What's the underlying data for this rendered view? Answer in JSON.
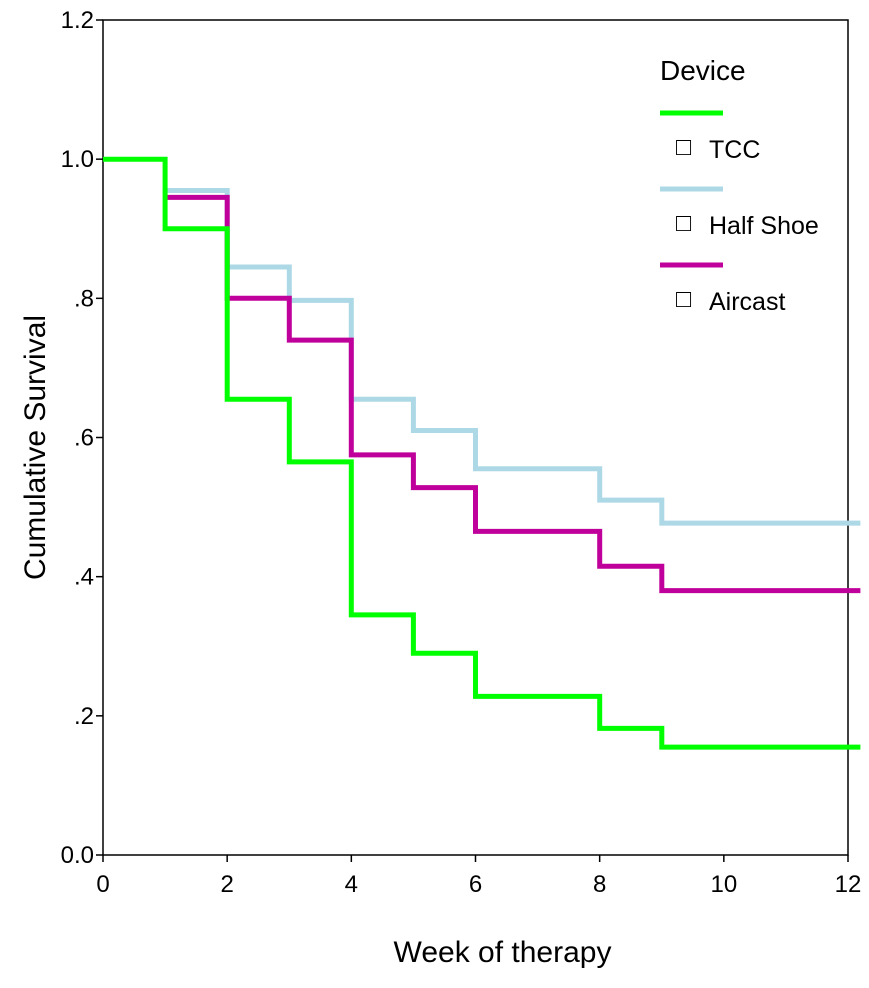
{
  "chart_data": {
    "type": "line",
    "step": true,
    "xlabel": "Week of therapy",
    "ylabel": "Cumulative Survival",
    "xlim": [
      0,
      12
    ],
    "ylim": [
      0,
      1.2
    ],
    "xticks": [
      0,
      2,
      4,
      6,
      8,
      10,
      12
    ],
    "xtick_labels": [
      "0",
      "2",
      "4",
      "6",
      "8",
      "10",
      "12"
    ],
    "yticks": [
      0,
      0.2,
      0.4,
      0.6,
      0.8,
      1.0,
      1.2
    ],
    "ytick_labels": [
      "0.0",
      ".2",
      ".4",
      ".6",
      ".8",
      "1.0",
      "1.2"
    ],
    "grid": false,
    "legend": {
      "title": "Device",
      "placement": "top-right",
      "censor_marker": "□"
    },
    "series": [
      {
        "name": "TCC",
        "color": "#00ff00",
        "x": [
          0,
          1,
          2,
          3,
          4,
          5,
          6,
          8,
          9,
          12.2
        ],
        "y": [
          1.0,
          0.9,
          0.655,
          0.565,
          0.345,
          0.29,
          0.228,
          0.182,
          0.155,
          0.155
        ]
      },
      {
        "name": "Half Shoe",
        "color": "#add8e6",
        "x": [
          1,
          2,
          3,
          4,
          5,
          6,
          8,
          9,
          12.2
        ],
        "y": [
          0.955,
          0.845,
          0.797,
          0.655,
          0.61,
          0.555,
          0.51,
          0.477,
          0.477
        ]
      },
      {
        "name": "Aircast",
        "color": "#c0009a",
        "x": [
          1,
          2,
          3,
          4,
          5,
          6,
          8,
          9,
          12.2
        ],
        "y": [
          0.945,
          0.8,
          0.74,
          0.575,
          0.528,
          0.465,
          0.415,
          0.38,
          0.38
        ]
      }
    ]
  }
}
